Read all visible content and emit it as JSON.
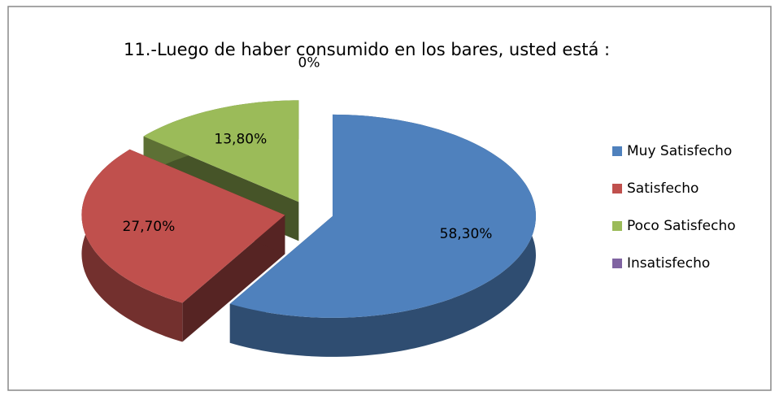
{
  "chart_data": {
    "type": "pie",
    "title": "11.-Luego de haber consumido en los bares, usted está :",
    "categories": [
      "Muy Satisfecho",
      "Satisfecho",
      "Poco Satisfecho",
      "Insatisfecho"
    ],
    "values": [
      58.3,
      27.7,
      13.8,
      0
    ],
    "value_labels": [
      "58,30%",
      "27,70%",
      "13,80%",
      "0%"
    ],
    "colors": [
      "#4f81bd",
      "#c0504d",
      "#9bbb59",
      "#8064a2"
    ],
    "legend": "right"
  }
}
